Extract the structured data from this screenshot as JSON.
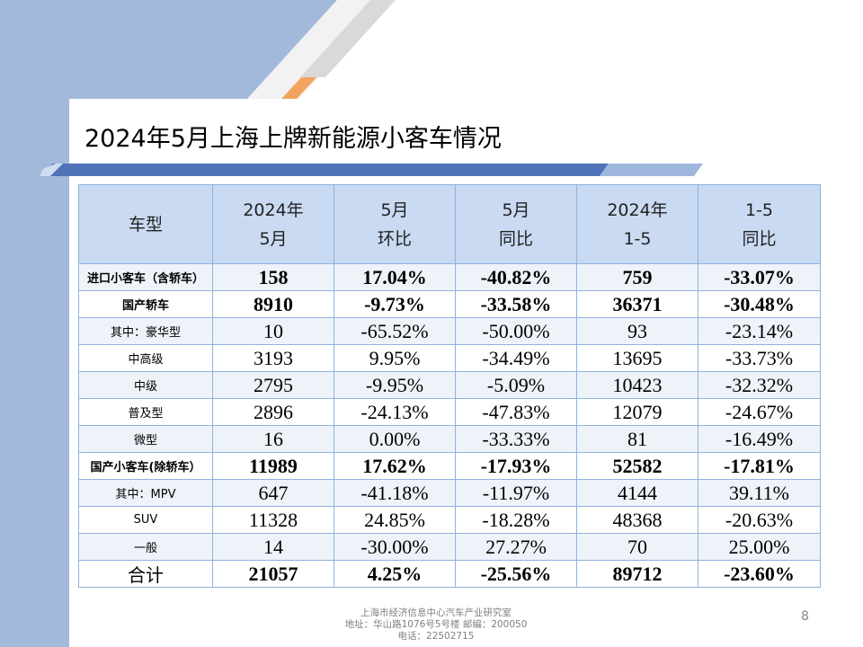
{
  "slide": {
    "title": "2024年5月上海上牌新能源小客车情况",
    "page_number": "8"
  },
  "table": {
    "headers": [
      [
        "车型"
      ],
      [
        "2024年",
        "5月"
      ],
      [
        "5月",
        "环比"
      ],
      [
        "5月",
        "同比"
      ],
      [
        "2024年",
        "1-5"
      ],
      [
        "1-5",
        "同比"
      ]
    ],
    "rows": [
      {
        "type": "进口小客车（含轿车）",
        "bold": true,
        "cells": [
          "158",
          "17.04%",
          "-40.82%",
          "759",
          "-33.07%"
        ]
      },
      {
        "type": "国产轿车",
        "bold": true,
        "cells": [
          "8910",
          "-9.73%",
          "-33.58%",
          "36371",
          "-30.48%"
        ]
      },
      {
        "type": "其中：豪华型",
        "bold": false,
        "cells": [
          "10",
          "-65.52%",
          "-50.00%",
          "93",
          "-23.14%"
        ]
      },
      {
        "type": "中高级",
        "bold": false,
        "cells": [
          "3193",
          "9.95%",
          "-34.49%",
          "13695",
          "-33.73%"
        ]
      },
      {
        "type": "中级",
        "bold": false,
        "cells": [
          "2795",
          "-9.95%",
          "-5.09%",
          "10423",
          "-32.32%"
        ]
      },
      {
        "type": "普及型",
        "bold": false,
        "cells": [
          "2896",
          "-24.13%",
          "-47.83%",
          "12079",
          "-24.67%"
        ]
      },
      {
        "type": "微型",
        "bold": false,
        "cells": [
          "16",
          "0.00%",
          "-33.33%",
          "81",
          "-16.49%"
        ]
      },
      {
        "type": "国产小客车(除轿车）",
        "bold": true,
        "cells": [
          "11989",
          "17.62%",
          "-17.93%",
          "52582",
          "-17.81%"
        ]
      },
      {
        "type": "其中：MPV",
        "bold": false,
        "cells": [
          "647",
          "-41.18%",
          "-11.97%",
          "4144",
          "39.11%"
        ]
      },
      {
        "type": "SUV",
        "bold": false,
        "cells": [
          "11328",
          "24.85%",
          "-18.28%",
          "48368",
          "-20.63%"
        ]
      },
      {
        "type": "一般",
        "bold": false,
        "cells": [
          "14",
          "-30.00%",
          "27.27%",
          "70",
          "25.00%"
        ]
      },
      {
        "type": "合计",
        "bold": true,
        "total": true,
        "cells": [
          "21057",
          "4.25%",
          "-25.56%",
          "89712",
          "-23.60%"
        ]
      }
    ]
  },
  "footer": {
    "org": "上海市经济信息中心汽车产业研究室",
    "address": "地址：华山路1076号5号楼    邮编：200050",
    "phone": "电话：22502715"
  },
  "colors": {
    "sidebar": "#a3b9dc",
    "stripe_blue": "#4f73b8",
    "accent_orange": "#f2a45e",
    "header_fill": "#c9daf2",
    "table_border": "#8fb3e0"
  }
}
